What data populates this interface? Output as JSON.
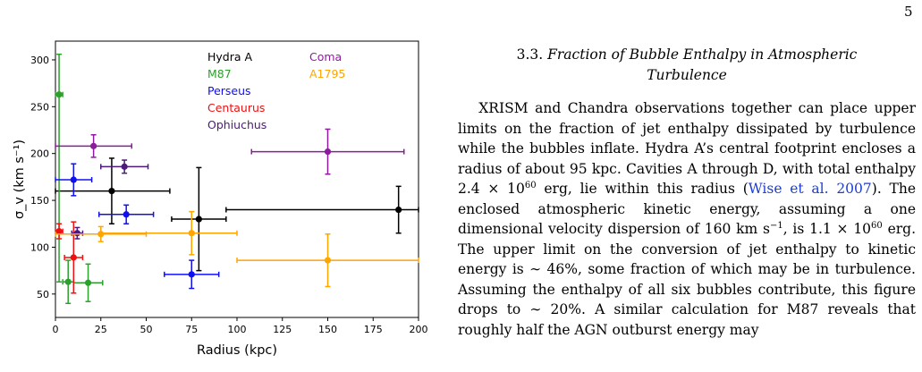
{
  "page": {
    "number": "5"
  },
  "chart_data": {
    "type": "scatter",
    "title": "",
    "xlabel": "Radius (kpc)",
    "ylabel": "σ_v (km s⁻¹)",
    "xlim": [
      0,
      200
    ],
    "ylim": [
      25,
      320
    ],
    "xticks": [
      0,
      25,
      50,
      75,
      100,
      125,
      150,
      175,
      200
    ],
    "yticks": [
      50,
      100,
      150,
      200,
      250,
      300
    ],
    "grid": false,
    "legend": "top-center",
    "series": [
      {
        "name": "Hydra A",
        "color": "#000000",
        "points": [
          {
            "x": 31,
            "y": 160,
            "xerr": [
              31,
              32
            ],
            "yerr": [
              35,
              35
            ]
          },
          {
            "x": 79,
            "y": 130,
            "xerr": [
              15,
              15
            ],
            "yerr": [
              55,
              55
            ]
          },
          {
            "x": 189,
            "y": 140,
            "xerr": [
              95,
              11
            ],
            "yerr": [
              25,
              25
            ]
          }
        ]
      },
      {
        "name": "M87",
        "color": "#2ca02c",
        "points": [
          {
            "x": 2,
            "y": 263,
            "xerr": [
              2,
              2
            ],
            "yerr": [
              200,
              43
            ]
          },
          {
            "x": 7,
            "y": 63,
            "xerr": [
              3,
              3
            ],
            "yerr": [
              23,
              23
            ]
          },
          {
            "x": 18,
            "y": 62,
            "xerr": [
              8,
              8
            ],
            "yerr": [
              20,
              20
            ]
          }
        ]
      },
      {
        "name": "Perseus",
        "color": "#1010ee",
        "points": [
          {
            "x": 10,
            "y": 172,
            "xerr": [
              10,
              10
            ],
            "yerr": [
              17,
              17
            ]
          },
          {
            "x": 39,
            "y": 135,
            "xerr": [
              15,
              15
            ],
            "yerr": [
              10,
              10
            ]
          },
          {
            "x": 75,
            "y": 71,
            "xerr": [
              15,
              15
            ],
            "yerr": [
              15,
              15
            ]
          }
        ]
      },
      {
        "name": "Centaurus",
        "color": "#ee1111",
        "points": [
          {
            "x": 2,
            "y": 117,
            "xerr": [
              2,
              2
            ],
            "yerr": [
              8,
              8
            ]
          },
          {
            "x": 10,
            "y": 89,
            "xerr": [
              5,
              5
            ],
            "yerr": [
              38,
              38
            ]
          }
        ]
      },
      {
        "name": "Ophiuchus",
        "color": "#4b1a7a",
        "points": [
          {
            "x": 12,
            "y": 115,
            "xerr": [
              3,
              3
            ],
            "yerr": [
              6,
              6
            ]
          },
          {
            "x": 38,
            "y": 186,
            "xerr": [
              13,
              13
            ],
            "yerr": [
              7,
              7
            ]
          }
        ]
      },
      {
        "name": "Coma",
        "color": "#8e1a9e",
        "points": [
          {
            "x": 21,
            "y": 208,
            "xerr": [
              21,
              21
            ],
            "yerr": [
              12,
              12
            ]
          },
          {
            "x": 150,
            "y": 202,
            "xerr": [
              42,
              42
            ],
            "yerr": [
              24,
              24
            ]
          }
        ]
      },
      {
        "name": "A1795",
        "color": "#ffa500",
        "points": [
          {
            "x": 25,
            "y": 114,
            "xerr": [
              25,
              25
            ],
            "yerr": [
              8,
              8
            ]
          },
          {
            "x": 75,
            "y": 115,
            "xerr": [
              50,
              25
            ],
            "yerr": [
              23,
              23
            ]
          },
          {
            "x": 150,
            "y": 86,
            "xerr": [
              50,
              50
            ],
            "yerr": [
              28,
              28
            ]
          }
        ]
      }
    ]
  },
  "section": {
    "number": "3.3.",
    "title_line1": "Fraction of Bubble Enthalpy in Atmospheric",
    "title_line2": "Turbulence"
  },
  "paragraph": {
    "part1": "XRISM and Chandra observations together can place upper limits on the fraction of jet enthalpy dissipated by turbulence while the bubbles inflate. Hydra A’s central footprint encloses a radius of about 95 kpc. Cavities A through D, with total enthalpy 2.4 × 10",
    "exp1": "60",
    "part2": " erg, lie within this radius (",
    "citation": "Wise et al. 2007",
    "part3": "). The enclosed atmospheric kinetic energy, assuming a one dimensional velocity dispersion of 160 km s",
    "exp2": "−1",
    "part4": ", is 1.1 × 10",
    "exp3": "60",
    "part5": " erg.  The upper limit on the conversion of jet enthalpy to kinetic energy is ∼ 46%, some fraction of which may be in turbulence. Assuming the enthalpy of all six bubbles contribute, this figure drops to ∼ 20%. A similar calculation for M87 reveals that roughly half the AGN outburst energy may"
  }
}
